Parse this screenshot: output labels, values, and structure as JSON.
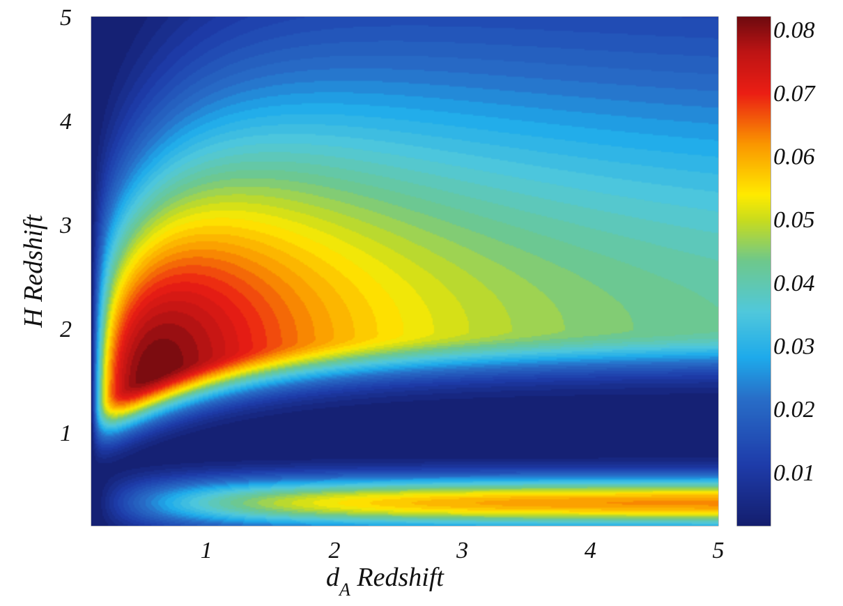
{
  "chart_data": {
    "type": "heatmap",
    "title": "",
    "xlabel": "d",
    "xlabel_subscript": "A",
    "xlabel_suffix": " Redshift",
    "ylabel": "H Redshift",
    "xlim": [
      0.1,
      5
    ],
    "ylim": [
      0.1,
      5
    ],
    "x_ticks": [
      1,
      2,
      3,
      4,
      5
    ],
    "y_ticks": [
      1,
      2,
      3,
      4,
      5
    ],
    "colorbar": {
      "range": [
        0.0015,
        0.082
      ],
      "ticks": [
        0.01,
        0.02,
        0.03,
        0.04,
        0.05,
        0.06,
        0.07,
        0.08
      ],
      "tick_labels": [
        "0.01",
        "0.02",
        "0.03",
        "0.04",
        "0.05",
        "0.06",
        "0.07",
        "0.08"
      ],
      "colormap": "jet"
    },
    "features": [
      {
        "description": "peak",
        "x": 0.6,
        "y": 1.4,
        "value": 0.082
      },
      {
        "description": "secondary ridge",
        "x": 3.3,
        "y": 0.3,
        "value": 0.063
      },
      {
        "description": "minimum trough",
        "x_range": [
          1.5,
          5
        ],
        "y": 0.9,
        "value": 0.003
      }
    ]
  }
}
